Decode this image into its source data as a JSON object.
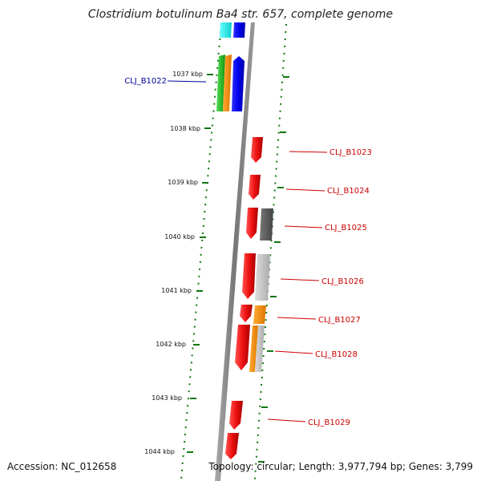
{
  "title": "Clostridium botulinum Ba4 str. 657, complete genome",
  "ticks": [
    "1037 kbp",
    "1038 kbp",
    "1039 kbp",
    "1040 kbp",
    "1041 kbp",
    "1042 kbp",
    "1043 kbp",
    "1044 kbp"
  ],
  "genes_left": [
    {
      "label": "CLJ_B1022",
      "color": "#000099"
    }
  ],
  "genes_right": [
    {
      "label": "CLJ_B1023",
      "color": "#cc0000"
    },
    {
      "label": "CLJ_B1024",
      "color": "#cc0000"
    },
    {
      "label": "CLJ_B1025",
      "color": "#cc0000"
    },
    {
      "label": "CLJ_B1026",
      "color": "#cc0000"
    },
    {
      "label": "CLJ_B1027",
      "color": "#cc0000"
    },
    {
      "label": "CLJ_B1028",
      "color": "#cc0000"
    },
    {
      "label": "CLJ_B1029",
      "color": "#cc0000"
    }
  ],
  "footer": {
    "accession": "Accession: NC_012658",
    "topology": "Topology: circular; Length: 3,977,794 bp; Genes: 3,799"
  },
  "colors": {
    "backbone": "#888888",
    "gene_red": "#ee1111",
    "gene_blue": "#0000ee",
    "gene_cyan": "#22dddd",
    "gene_green": "#22bb22",
    "gene_orange": "#ff8800",
    "gene_dark_gray": "#555555",
    "gene_light_gray": "#bbbbbb",
    "tick_green": "#117711"
  }
}
